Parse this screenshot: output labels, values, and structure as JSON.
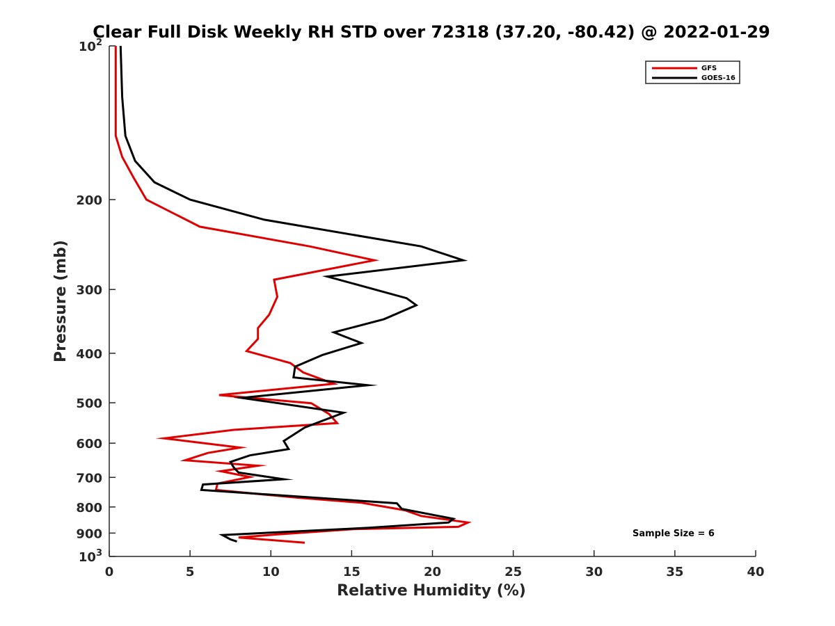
{
  "chart_data": {
    "type": "line",
    "title": "Clear Full Disk Weekly RH STD over 72318 (37.20, -80.42) @ 2022-01-29",
    "xlabel": "Relative Humidity (%)",
    "ylabel": "Pressure (mb)",
    "xlim": [
      0,
      40
    ],
    "ylim": [
      100,
      1000
    ],
    "yscale": "log",
    "y_reversed": true,
    "x_ticks": [
      "0",
      "5",
      "10",
      "15",
      "20",
      "25",
      "30",
      "35",
      "40"
    ],
    "y_ticks": [
      {
        "value": 100,
        "base": "10",
        "exp": "2"
      },
      {
        "value": 200,
        "label": "200"
      },
      {
        "value": 300,
        "label": "300"
      },
      {
        "value": 400,
        "label": "400"
      },
      {
        "value": 500,
        "label": "500"
      },
      {
        "value": 600,
        "label": "600"
      },
      {
        "value": 700,
        "label": "700"
      },
      {
        "value": 800,
        "label": "800"
      },
      {
        "value": 900,
        "label": "900"
      },
      {
        "value": 1000,
        "base": "10",
        "exp": "3"
      }
    ],
    "legend_position": "top-right",
    "grid": false,
    "annotation": "Sample Size = 6",
    "series": [
      {
        "name": "GFS",
        "color": "#e00000",
        "points": [
          [
            0.4,
            100
          ],
          [
            0.4,
            126
          ],
          [
            0.4,
            150
          ],
          [
            0.8,
            165
          ],
          [
            1.5,
            181
          ],
          [
            2.3,
            200
          ],
          [
            5.6,
            226
          ],
          [
            12.4,
            247
          ],
          [
            16.4,
            263
          ],
          [
            10.2,
            287
          ],
          [
            10.4,
            310
          ],
          [
            9.9,
            336
          ],
          [
            9.2,
            357
          ],
          [
            9.2,
            375
          ],
          [
            8.5,
            396
          ],
          [
            11.2,
            418
          ],
          [
            12.0,
            436
          ],
          [
            13.9,
            459
          ],
          [
            6.8,
            483
          ],
          [
            12.5,
            501
          ],
          [
            13.6,
            526
          ],
          [
            14.1,
            548
          ],
          [
            7.7,
            565
          ],
          [
            3.4,
            587
          ],
          [
            8.1,
            612
          ],
          [
            6.1,
            627
          ],
          [
            4.7,
            648
          ],
          [
            9.2,
            664
          ],
          [
            6.9,
            681
          ],
          [
            8.7,
            699
          ],
          [
            6.7,
            720
          ],
          [
            6.6,
            741
          ],
          [
            11.6,
            767
          ],
          [
            15.6,
            785
          ],
          [
            18.3,
            812
          ],
          [
            19.3,
            833
          ],
          [
            22.2,
            858
          ],
          [
            21.6,
            875
          ],
          [
            15.1,
            884
          ],
          [
            10.3,
            906
          ],
          [
            8.0,
            918
          ],
          [
            12.1,
            940
          ]
        ]
      },
      {
        "name": "GOES-16",
        "color": "#000000",
        "points": [
          [
            0.7,
            100
          ],
          [
            0.8,
            126
          ],
          [
            1.0,
            150
          ],
          [
            1.6,
            168
          ],
          [
            2.8,
            185
          ],
          [
            5.0,
            200
          ],
          [
            9.6,
            219
          ],
          [
            19.3,
            247
          ],
          [
            21.9,
            263
          ],
          [
            13.5,
            283
          ],
          [
            18.4,
            312
          ],
          [
            19.0,
            322
          ],
          [
            17.0,
            343
          ],
          [
            13.9,
            364
          ],
          [
            15.6,
            382
          ],
          [
            13.2,
            403
          ],
          [
            11.5,
            425
          ],
          [
            11.4,
            446
          ],
          [
            16.0,
            462
          ],
          [
            8.2,
            489
          ],
          [
            14.5,
            523
          ],
          [
            12.1,
            559
          ],
          [
            10.8,
            594
          ],
          [
            11.1,
            616
          ],
          [
            8.7,
            634
          ],
          [
            7.5,
            653
          ],
          [
            7.7,
            669
          ],
          [
            8.0,
            685
          ],
          [
            10.8,
            706
          ],
          [
            5.8,
            723
          ],
          [
            5.7,
            741
          ],
          [
            17.8,
            787
          ],
          [
            18.1,
            807
          ],
          [
            21.3,
            844
          ],
          [
            21.0,
            858
          ],
          [
            16.0,
            879
          ],
          [
            7.0,
            908
          ],
          [
            7.5,
            926
          ],
          [
            7.9,
            935
          ]
        ]
      }
    ]
  }
}
